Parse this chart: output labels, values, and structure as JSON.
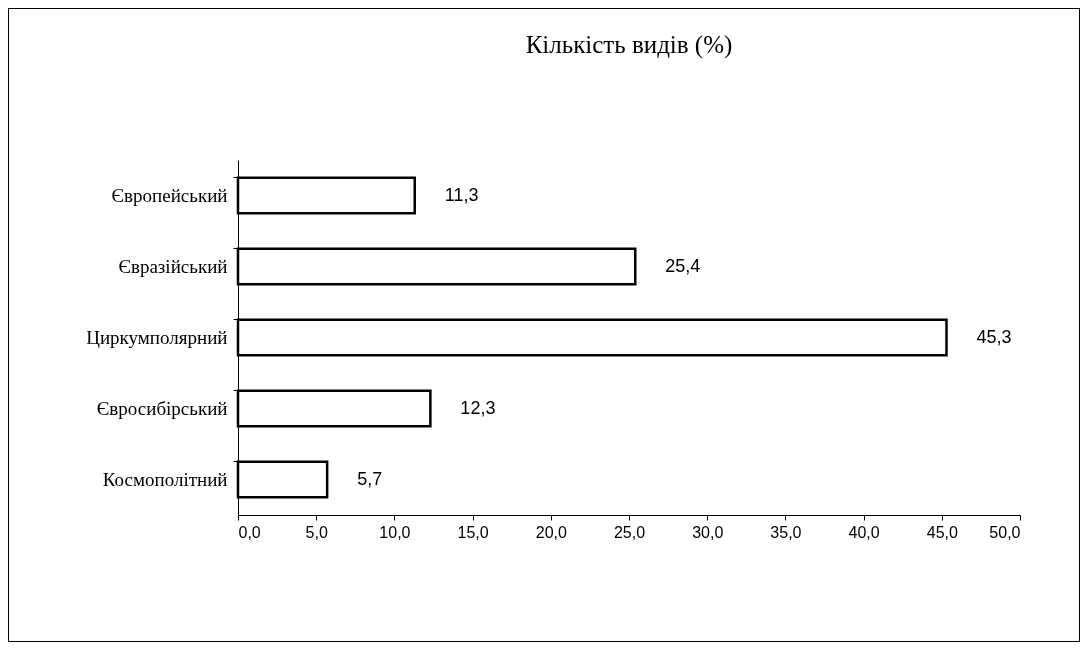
{
  "chart_data": {
    "type": "bar",
    "orientation": "horizontal",
    "title": "Кількість видів (%)",
    "categories": [
      "Європейський",
      "Євразійський",
      "Циркумполярний",
      "Євросибірський",
      "Космополітний"
    ],
    "values": [
      11.3,
      25.4,
      45.3,
      12.3,
      5.7
    ],
    "value_labels": [
      "11,3",
      "25,4",
      "45,3",
      "12,3",
      "5,7"
    ],
    "color": "#ffffff",
    "xlim": [
      0,
      50
    ],
    "xticks": [
      {
        "value": 0,
        "label": "0,0"
      },
      {
        "value": 5,
        "label": "5,0"
      },
      {
        "value": 10,
        "label": "10,0"
      },
      {
        "value": 15,
        "label": "15,0"
      },
      {
        "value": 20,
        "label": "20,0"
      },
      {
        "value": 25,
        "label": "25,0"
      },
      {
        "value": 30,
        "label": "30,0"
      },
      {
        "value": 35,
        "label": "35,0"
      },
      {
        "value": 40,
        "label": "40,0"
      },
      {
        "value": 45,
        "label": "45,0"
      },
      {
        "value": 50,
        "label": "50,0"
      }
    ],
    "grid": false
  }
}
